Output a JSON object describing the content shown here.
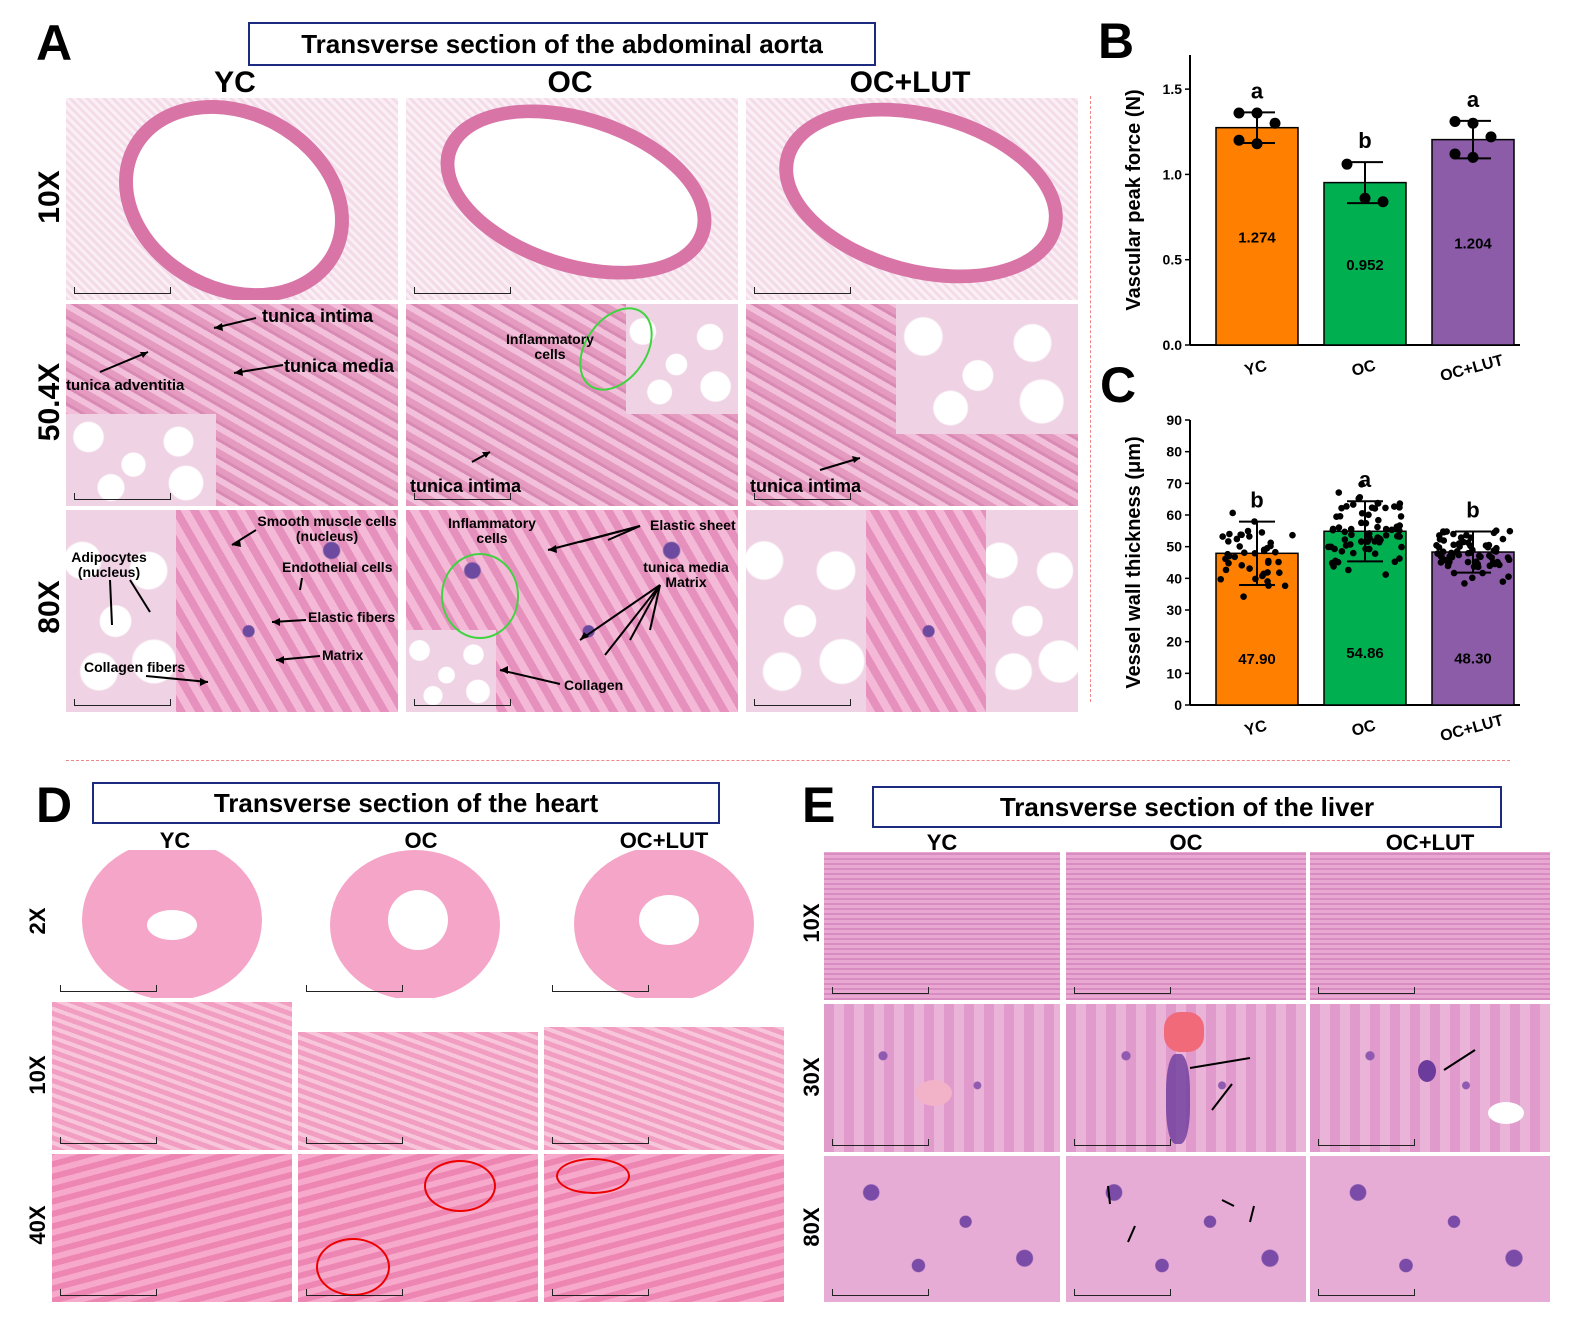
{
  "panels": {
    "A": {
      "letter": "A",
      "title": "Transverse section of the abdominal aorta",
      "columns": [
        "YC",
        "OC",
        "OC+LUT"
      ],
      "rows": [
        "10X",
        "50.4X",
        "80X"
      ],
      "annotations": {
        "yc_504": [
          "tunica intima",
          "tunica media",
          "tunica adventitia"
        ],
        "oc_504_inflam": "Inflammatory cells",
        "oc_504_intima": "tunica intima",
        "lut_504_intima": "tunica intima",
        "yc_80": [
          "Smooth muscle cells (nucleus)",
          "Endothelial cells",
          "Adipocytes (nucleus)",
          "Elastic fibers",
          "Matrix",
          "Collagen fibers"
        ],
        "oc_80": [
          "Inflammatory cells",
          "Elastic sheet",
          "tunica media Matrix",
          "Collagen"
        ]
      }
    },
    "B": {
      "letter": "B"
    },
    "C": {
      "letter": "C"
    },
    "D": {
      "letter": "D",
      "title": "Transverse section of the heart",
      "columns": [
        "YC",
        "OC",
        "OC+LUT"
      ],
      "rows": [
        "2X",
        "10X",
        "40X"
      ]
    },
    "E": {
      "letter": "E",
      "title": "Transverse section of the liver",
      "columns": [
        "YC",
        "OC",
        "OC+LUT"
      ],
      "rows": [
        "10X",
        "30X",
        "80X"
      ]
    }
  },
  "chart_data": [
    {
      "type": "bar",
      "panel": "B",
      "categories": [
        "YC",
        "OC",
        "OC+LUT"
      ],
      "values": [
        1.274,
        0.952,
        1.204
      ],
      "value_labels": [
        "1.274",
        "0.952",
        "1.204"
      ],
      "errors": [
        0.09,
        0.12,
        0.11
      ],
      "significance": [
        "a",
        "b",
        "a"
      ],
      "points": [
        [
          1.36,
          1.36,
          1.3,
          1.2,
          1.18
        ],
        [
          1.06,
          0.86,
          0.84
        ],
        [
          1.31,
          1.3,
          1.22,
          1.12,
          1.1
        ]
      ],
      "ylabel": "Vascular peak force (N)",
      "ylim": [
        0,
        1.7
      ],
      "yticks": [
        "0.0",
        "0.5",
        "1.0",
        "1.5"
      ],
      "colors": [
        "#ff8000",
        "#00b050",
        "#8c5ca8"
      ]
    },
    {
      "type": "bar",
      "panel": "C",
      "categories": [
        "YC",
        "OC",
        "OC+LUT"
      ],
      "values": [
        47.9,
        54.86,
        48.3
      ],
      "value_labels": [
        "47.90",
        "54.86",
        "48.30"
      ],
      "errors": [
        10,
        9.5,
        6.5
      ],
      "significance": [
        "b",
        "a",
        "b"
      ],
      "ylabel": "Vessel wall thickness (μm)",
      "ylim": [
        0,
        90
      ],
      "yticks": [
        "0",
        "10",
        "20",
        "30",
        "40",
        "50",
        "60",
        "70",
        "80",
        "90"
      ],
      "colors": [
        "#ff8000",
        "#00b050",
        "#8c5ca8"
      ]
    }
  ]
}
